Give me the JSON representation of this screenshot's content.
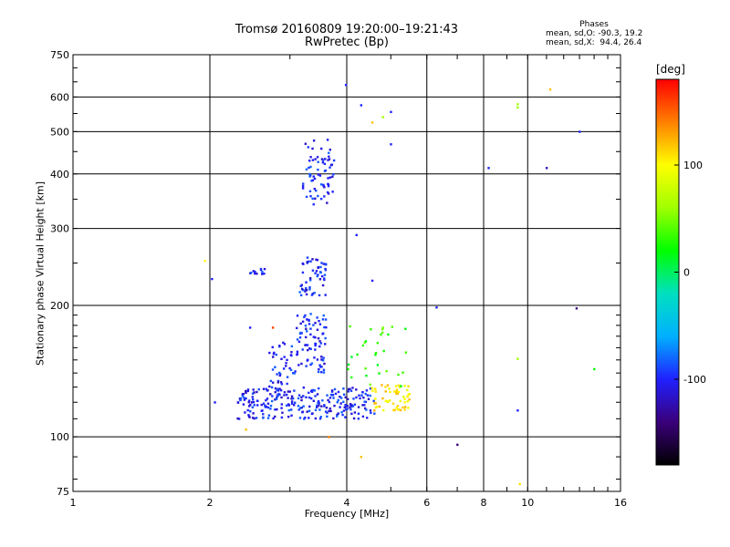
{
  "title": {
    "line1": "Tromsø 20160809 19:20:00–19:21:43",
    "line2": "RwPretec (Bp)"
  },
  "phase_stats": {
    "heading": "Phases",
    "line1": "mean, sd,O: -90.3, 19.2",
    "line2": "mean, sd,X:  94.4, 26.4"
  },
  "colorbar": {
    "label": "[deg]",
    "ticks": [
      "100",
      "0",
      "-100"
    ],
    "tick_values": [
      100,
      0,
      -100
    ],
    "range": [
      -180,
      180
    ],
    "colors": [
      "#000000",
      "#3a007a",
      "#2020ff",
      "#00b0ff",
      "#00e0c0",
      "#00ff00",
      "#a0ff00",
      "#ffff00",
      "#ff8000",
      "#ff0000"
    ]
  },
  "chart_data": {
    "type": "scatter",
    "title": "Tromsø 20160809 19:20:00–19:21:43 RwPretec (Bp)",
    "xlabel": "Frequency [MHz]",
    "ylabel": "Stationary phase Virtual Height [km]",
    "x_scale": "log",
    "y_scale": "log",
    "xlim": [
      1,
      16
    ],
    "ylim": [
      75,
      750
    ],
    "x_ticks": [
      1,
      2,
      4,
      6,
      8,
      10,
      16
    ],
    "x_tick_labels": [
      "1",
      "2",
      "4",
      "6",
      "8",
      "10",
      "16"
    ],
    "y_ticks": [
      75,
      100,
      200,
      300,
      400,
      500,
      600,
      750
    ],
    "y_tick_labels": [
      "75",
      "100",
      "200",
      "300",
      "400",
      "500",
      "600",
      "750"
    ],
    "grid": true,
    "clusters": [
      {
        "name": "",
        "phase_deg": -100,
        "x_range": [
          3.2,
          3.75
        ],
        "y_range": [
          340,
          480
        ],
        "count": 70
      },
      {
        "name": "",
        "phase_deg": -100,
        "x_range": [
          3.15,
          3.6
        ],
        "y_range": [
          210,
          260
        ],
        "count": 55
      },
      {
        "name": "",
        "phase_deg": -100,
        "x_range": [
          2.45,
          2.65
        ],
        "y_range": [
          236,
          244
        ],
        "count": 12
      },
      {
        "name": "",
        "phase_deg": -100,
        "x_range": [
          3.1,
          3.6
        ],
        "y_range": [
          140,
          192
        ],
        "count": 80
      },
      {
        "name": "",
        "phase_deg": -100,
        "x_range": [
          2.3,
          4.6
        ],
        "y_range": [
          110,
          130
        ],
        "count": 260
      },
      {
        "name": "",
        "phase_deg": -100,
        "x_range": [
          2.7,
          3.1
        ],
        "y_range": [
          130,
          165
        ],
        "count": 40
      },
      {
        "name": "",
        "phase_deg": 110,
        "x_range": [
          4.5,
          5.5
        ],
        "y_range": [
          115,
          132
        ],
        "count": 60
      },
      {
        "name": "",
        "phase_deg": 30,
        "x_range": [
          4.0,
          5.5
        ],
        "y_range": [
          130,
          180
        ],
        "count": 30
      }
    ],
    "points": [
      {
        "x": 3.98,
        "y": 640,
        "phase_deg": -100
      },
      {
        "x": 4.3,
        "y": 575,
        "phase_deg": -100
      },
      {
        "x": 4.55,
        "y": 525,
        "phase_deg": 120
      },
      {
        "x": 4.8,
        "y": 540,
        "phase_deg": 60
      },
      {
        "x": 5.0,
        "y": 555,
        "phase_deg": -100
      },
      {
        "x": 5.0,
        "y": 468,
        "phase_deg": -100
      },
      {
        "x": 9.5,
        "y": 578,
        "phase_deg": 60
      },
      {
        "x": 9.5,
        "y": 568,
        "phase_deg": 60
      },
      {
        "x": 11.2,
        "y": 625,
        "phase_deg": 120
      },
      {
        "x": 13.0,
        "y": 500,
        "phase_deg": -100
      },
      {
        "x": 8.2,
        "y": 413,
        "phase_deg": -100
      },
      {
        "x": 11.0,
        "y": 413,
        "phase_deg": -120
      },
      {
        "x": 1.95,
        "y": 253,
        "phase_deg": 100
      },
      {
        "x": 2.02,
        "y": 230,
        "phase_deg": -100
      },
      {
        "x": 4.2,
        "y": 290,
        "phase_deg": -100
      },
      {
        "x": 4.55,
        "y": 228,
        "phase_deg": -100
      },
      {
        "x": 6.3,
        "y": 198,
        "phase_deg": -100
      },
      {
        "x": 12.8,
        "y": 197,
        "phase_deg": -140
      },
      {
        "x": 9.5,
        "y": 151,
        "phase_deg": 60
      },
      {
        "x": 14.0,
        "y": 143,
        "phase_deg": 20
      },
      {
        "x": 9.5,
        "y": 115,
        "phase_deg": -100
      },
      {
        "x": 7.0,
        "y": 96,
        "phase_deg": -140
      },
      {
        "x": 2.4,
        "y": 104,
        "phase_deg": 120
      },
      {
        "x": 3.65,
        "y": 100,
        "phase_deg": 140
      },
      {
        "x": 4.3,
        "y": 90,
        "phase_deg": 120
      },
      {
        "x": 9.6,
        "y": 78,
        "phase_deg": 110
      },
      {
        "x": 2.05,
        "y": 120,
        "phase_deg": -100
      },
      {
        "x": 2.45,
        "y": 178,
        "phase_deg": -100
      },
      {
        "x": 2.75,
        "y": 178,
        "phase_deg": 160
      },
      {
        "x": 4.8,
        "y": 178,
        "phase_deg": 50
      }
    ]
  }
}
